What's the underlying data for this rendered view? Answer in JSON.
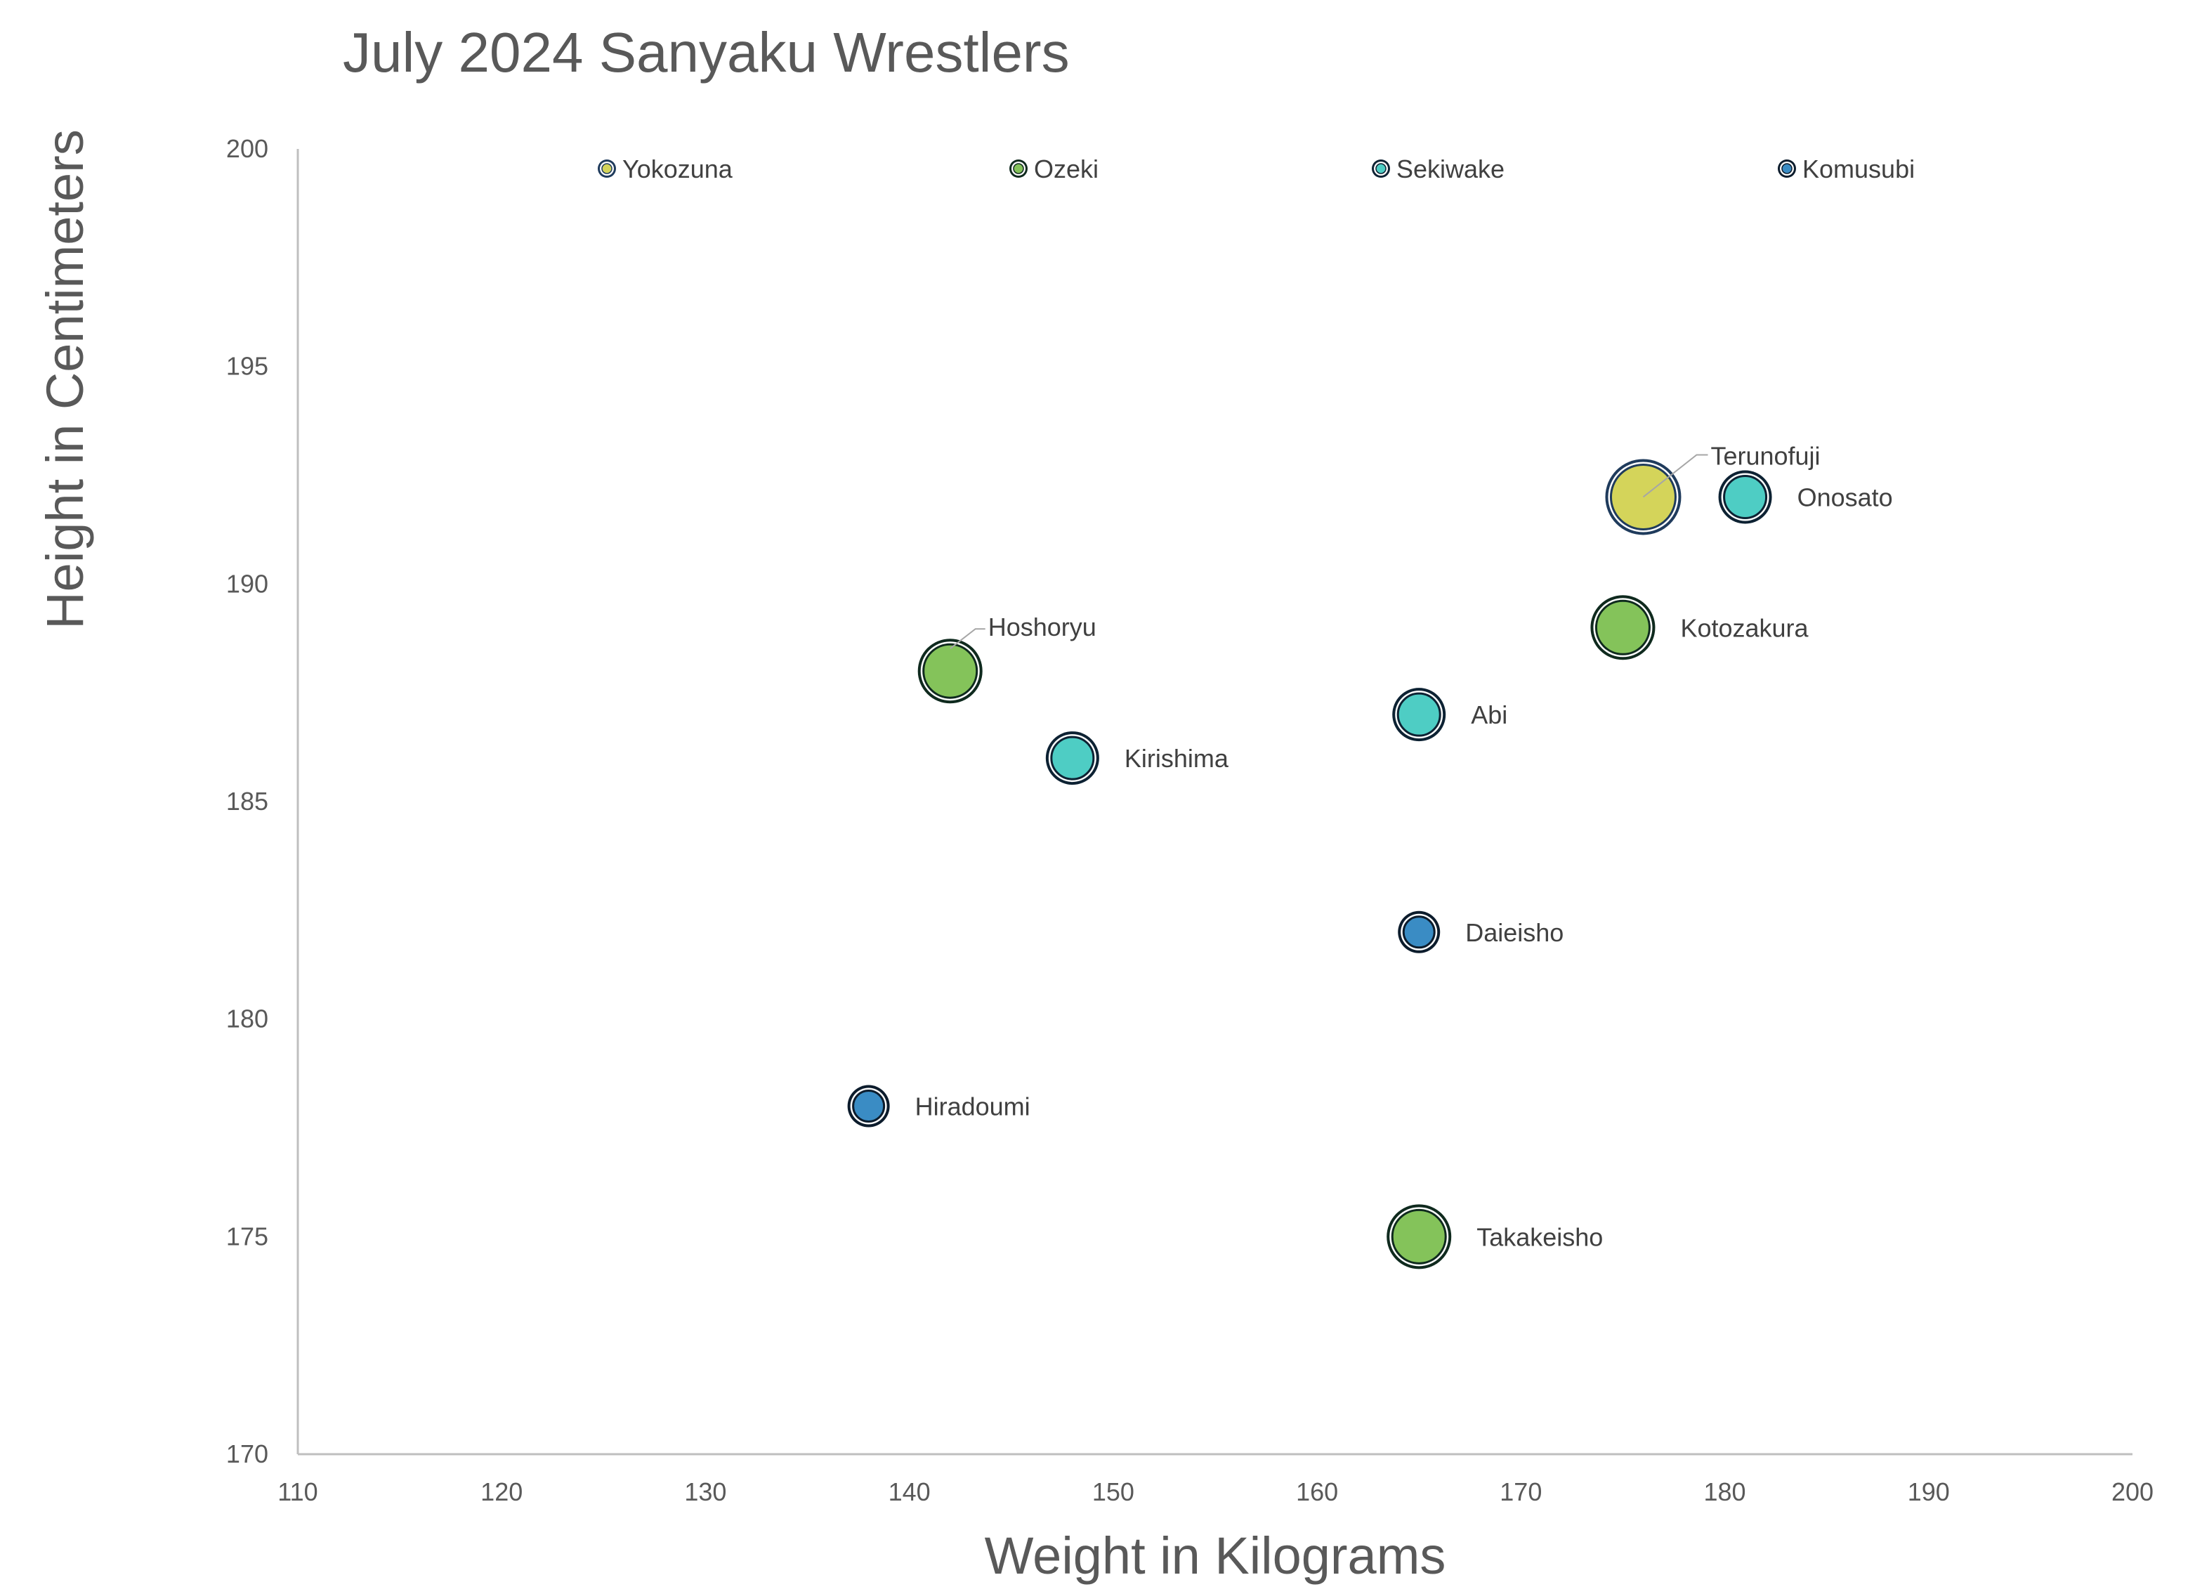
{
  "chart_data": {
    "type": "bubble",
    "title": "July 2024 Sanyaku Wrestlers",
    "xlabel": "Weight in Kilograms",
    "ylabel": "Height in Centimeters",
    "xlim": [
      110,
      200
    ],
    "ylim": [
      170,
      200
    ],
    "x_ticks": [
      110,
      120,
      130,
      140,
      150,
      160,
      170,
      180,
      190,
      200
    ],
    "y_ticks": [
      170,
      175,
      180,
      185,
      190,
      195,
      200
    ],
    "grid": false,
    "legend_position": "top",
    "series": [
      {
        "name": "Yokozuna",
        "color": "#d4d45a",
        "border": "#1f3b5c",
        "points": [
          {
            "label": "Terunofuji",
            "x": 176,
            "y": 192,
            "size": 4
          }
        ]
      },
      {
        "name": "Ozeki",
        "color": "#84c35a",
        "border": "#0f2a1e",
        "points": [
          {
            "label": "Hoshoryu",
            "x": 142,
            "y": 188,
            "size": 3
          },
          {
            "label": "Kotozakura",
            "x": 175,
            "y": 189,
            "size": 3
          },
          {
            "label": "Takakeisho",
            "x": 165,
            "y": 175,
            "size": 3
          }
        ]
      },
      {
        "name": "Sekiwake",
        "color": "#4ecdc4",
        "border": "#0d2233",
        "points": [
          {
            "label": "Onosato",
            "x": 181,
            "y": 192,
            "size": 2
          },
          {
            "label": "Kirishima",
            "x": 148,
            "y": 186,
            "size": 2
          },
          {
            "label": "Abi",
            "x": 165,
            "y": 187,
            "size": 2
          }
        ]
      },
      {
        "name": "Komusubi",
        "color": "#3a8cc4",
        "border": "#0c1c2c",
        "points": [
          {
            "label": "Daieisho",
            "x": 165,
            "y": 182,
            "size": 1
          },
          {
            "label": "Hiradoumi",
            "x": 138,
            "y": 178,
            "size": 1
          }
        ]
      }
    ]
  }
}
